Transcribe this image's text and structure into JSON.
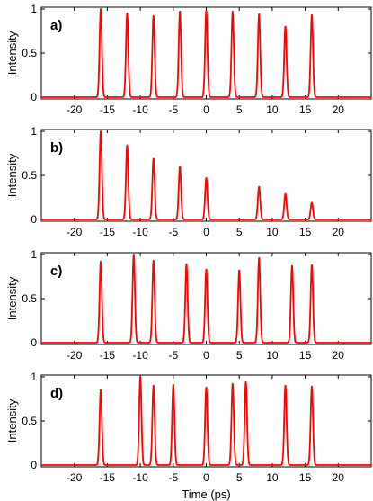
{
  "figure": {
    "xlabel": "Time (ps)",
    "ylabel": "Intensity",
    "line_color": "#ff0000"
  },
  "chart_data": [
    {
      "type": "line",
      "panel_label": "a)",
      "ylabel": "Intensity",
      "xlabel": "",
      "xlim": [
        -25,
        25
      ],
      "ylim": [
        0,
        1
      ],
      "xticks": [
        -20,
        -15,
        -10,
        -5,
        0,
        5,
        10,
        15,
        20
      ],
      "yticks": [
        0,
        0.5,
        1
      ],
      "ytick_labels": [
        "0",
        "0.5",
        "1"
      ],
      "grid": false,
      "pulse_width_ps": 0.25,
      "pulses": [
        {
          "t": -16,
          "peak": 1.0
        },
        {
          "t": -12,
          "peak": 0.95
        },
        {
          "t": -8,
          "peak": 0.92
        },
        {
          "t": -4,
          "peak": 0.97
        },
        {
          "t": 0,
          "peak": 0.98
        },
        {
          "t": 4,
          "peak": 0.97
        },
        {
          "t": 8,
          "peak": 0.94
        },
        {
          "t": 12,
          "peak": 0.8
        },
        {
          "t": 16,
          "peak": 0.93
        }
      ]
    },
    {
      "type": "line",
      "panel_label": "b)",
      "ylabel": "Intensity",
      "xlabel": "",
      "xlim": [
        -25,
        25
      ],
      "ylim": [
        0,
        1
      ],
      "xticks": [
        -20,
        -15,
        -10,
        -5,
        0,
        5,
        10,
        15,
        20
      ],
      "yticks": [
        0,
        0.5,
        1
      ],
      "ytick_labels": [
        "0",
        "0.5",
        "1"
      ],
      "grid": false,
      "pulse_width_ps": 0.25,
      "pulses": [
        {
          "t": -16,
          "peak": 1.0
        },
        {
          "t": -12,
          "peak": 0.84
        },
        {
          "t": -8,
          "peak": 0.69
        },
        {
          "t": -4,
          "peak": 0.6
        },
        {
          "t": 0,
          "peak": 0.47
        },
        {
          "t": 8,
          "peak": 0.37
        },
        {
          "t": 12,
          "peak": 0.29
        },
        {
          "t": 16,
          "peak": 0.19
        }
      ]
    },
    {
      "type": "line",
      "panel_label": "c)",
      "ylabel": "Intensity",
      "xlabel": "",
      "xlim": [
        -25,
        25
      ],
      "ylim": [
        0,
        1
      ],
      "xticks": [
        -20,
        -15,
        -10,
        -5,
        0,
        5,
        10,
        15,
        20
      ],
      "yticks": [
        0,
        0.5,
        1
      ],
      "ytick_labels": [
        "0",
        "0.5",
        "1"
      ],
      "grid": false,
      "pulse_width_ps": 0.25,
      "pulses": [
        {
          "t": -16,
          "peak": 0.92
        },
        {
          "t": -11,
          "peak": 1.0
        },
        {
          "t": -8,
          "peak": 0.93
        },
        {
          "t": -3,
          "peak": 0.89
        },
        {
          "t": 0,
          "peak": 0.83
        },
        {
          "t": 5,
          "peak": 0.82
        },
        {
          "t": 8,
          "peak": 0.96
        },
        {
          "t": 13,
          "peak": 0.87
        },
        {
          "t": 16,
          "peak": 0.88
        }
      ]
    },
    {
      "type": "line",
      "panel_label": "d)",
      "ylabel": "Intensity",
      "xlabel": "Time (ps)",
      "xlim": [
        -25,
        25
      ],
      "ylim": [
        0,
        1
      ],
      "xticks": [
        -20,
        -15,
        -10,
        -5,
        0,
        5,
        10,
        15,
        20
      ],
      "yticks": [
        0,
        0.5,
        1
      ],
      "ytick_labels": [
        "0",
        "0.5",
        "1"
      ],
      "grid": false,
      "pulse_width_ps": 0.25,
      "pulses": [
        {
          "t": -16,
          "peak": 0.85
        },
        {
          "t": -10,
          "peak": 1.0
        },
        {
          "t": -8,
          "peak": 0.9
        },
        {
          "t": -5,
          "peak": 0.91
        },
        {
          "t": 0,
          "peak": 0.88
        },
        {
          "t": 4,
          "peak": 0.92
        },
        {
          "t": 6,
          "peak": 0.94
        },
        {
          "t": 12,
          "peak": 0.9
        },
        {
          "t": 16,
          "peak": 0.89
        }
      ]
    }
  ]
}
